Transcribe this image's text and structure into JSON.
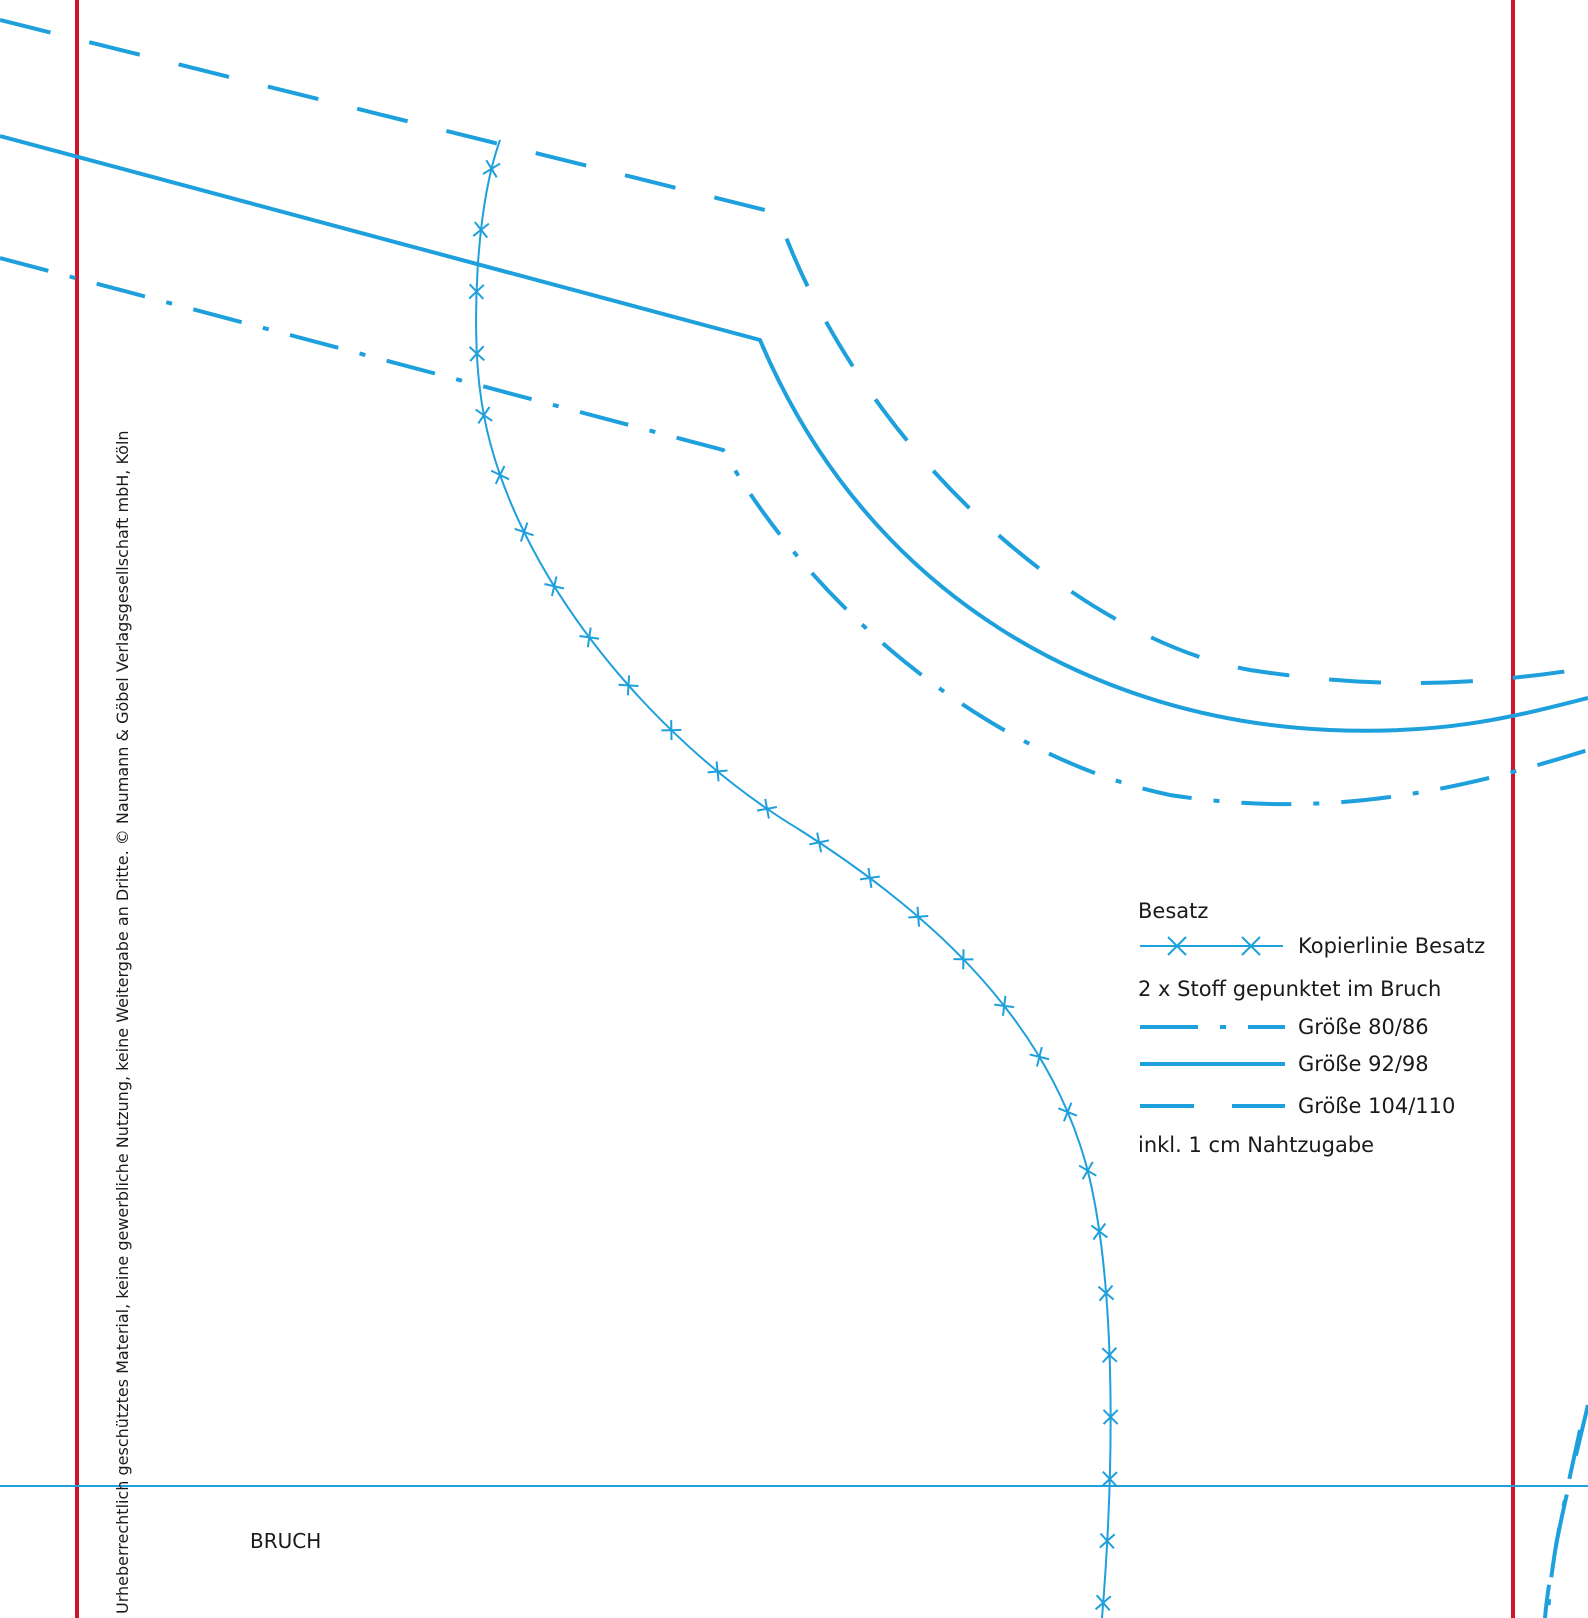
{
  "legend": {
    "title": "Besatz",
    "copy_line_label": "Kopierlinie Besatz",
    "fabric_note": "2 x Stoff gepunktet im Bruch",
    "sizes": [
      {
        "label": "Größe 80/86",
        "style": "dash-dot"
      },
      {
        "label": "Größe 92/98",
        "style": "solid"
      },
      {
        "label": "Größe 104/110",
        "style": "long-dash"
      }
    ],
    "allowance_note": "inkl. 1 cm Nahtzugabe"
  },
  "fold_label": "BRUCH",
  "copyright": "Urheberrechtlich geschütztes Material, keine gewerbliche Nutzung, keine Weitergabe an Dritte. © Naumann & Göbel Verlagsgesellschaft mbH, Köln",
  "colors": {
    "pattern_line": "#1ea0dc",
    "page_border": "#d0142a",
    "text": "#1a1a1a"
  }
}
